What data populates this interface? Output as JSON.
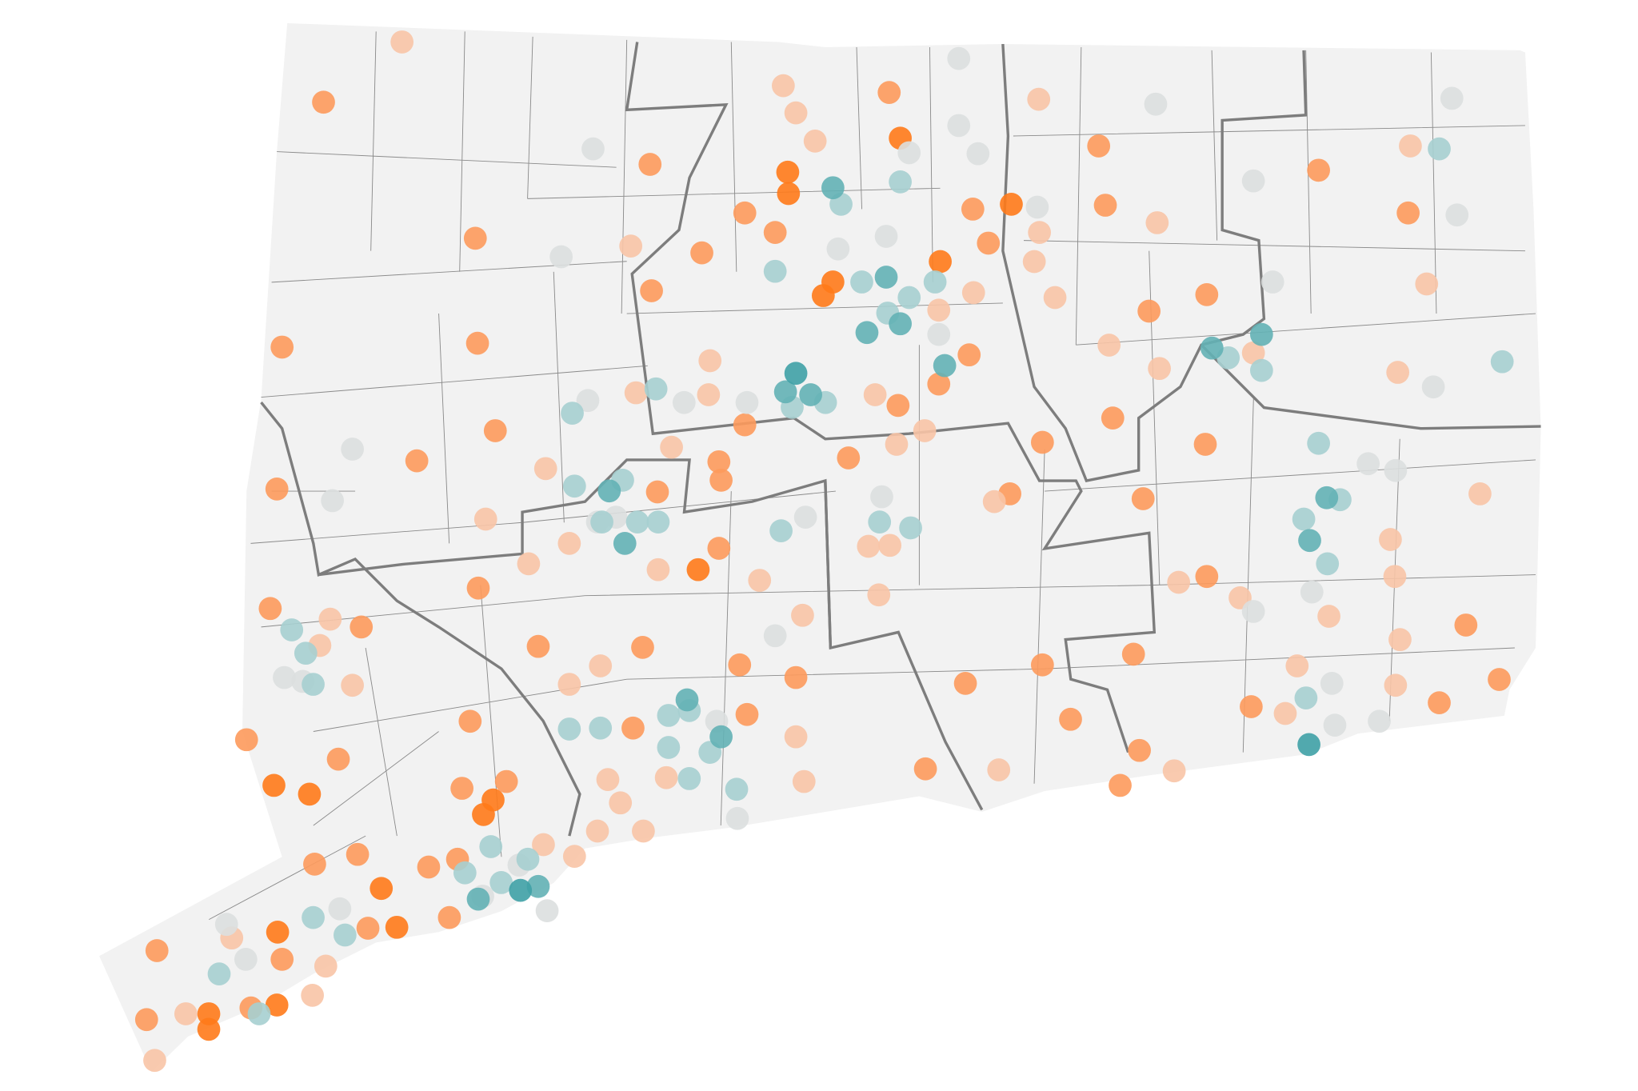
{
  "map": {
    "groups": [
      {
        "color": "#ff7a1a",
        "points": [
          [
            -73.589,
            41.034
          ],
          [
            -73.589,
            41.018
          ],
          [
            -73.497,
            41.043
          ],
          [
            -73.496,
            41.118
          ],
          [
            -73.501,
            41.269
          ],
          [
            -73.453,
            41.26
          ],
          [
            -73.356,
            41.163
          ],
          [
            -73.335,
            41.123
          ],
          [
            -73.218,
            41.239
          ],
          [
            -73.205,
            41.254
          ],
          [
            -72.759,
            41.773
          ],
          [
            -72.746,
            41.787
          ],
          [
            -72.807,
            41.9
          ],
          [
            -72.806,
            41.878
          ],
          [
            -72.505,
            41.867
          ],
          [
            -72.655,
            41.935
          ],
          [
            -72.601,
            41.808
          ],
          [
            -72.928,
            41.491
          ]
        ]
      },
      {
        "color": "#fd9a5c",
        "points": [
          [
            -73.434,
            41.972
          ],
          [
            -73.229,
            41.832
          ],
          [
            -73.226,
            41.724
          ],
          [
            -73.49,
            41.72
          ],
          [
            -73.497,
            41.574
          ],
          [
            -72.993,
            41.908
          ],
          [
            -72.865,
            41.858
          ],
          [
            -72.824,
            41.838
          ],
          [
            -72.923,
            41.817
          ],
          [
            -72.991,
            41.778
          ],
          [
            -72.67,
            41.982
          ],
          [
            -72.387,
            41.927
          ],
          [
            -72.378,
            41.866
          ],
          [
            -72.09,
            41.902
          ],
          [
            -71.969,
            41.858
          ],
          [
            -72.241,
            41.774
          ],
          [
            -72.319,
            41.757
          ],
          [
            -72.562,
            41.712
          ],
          [
            -72.603,
            41.682
          ],
          [
            -72.658,
            41.66
          ],
          [
            -72.725,
            41.606
          ],
          [
            -72.368,
            41.647
          ],
          [
            -72.463,
            41.622
          ],
          [
            -72.243,
            41.62
          ],
          [
            -72.327,
            41.564
          ],
          [
            -72.507,
            41.569
          ],
          [
            -72.241,
            41.484
          ],
          [
            -71.891,
            41.434
          ],
          [
            -71.927,
            41.354
          ],
          [
            -71.846,
            41.378
          ],
          [
            -72.34,
            41.404
          ],
          [
            -72.463,
            41.393
          ],
          [
            -72.425,
            41.337
          ],
          [
            -72.567,
            41.374
          ],
          [
            -72.621,
            41.286
          ],
          [
            -72.332,
            41.305
          ],
          [
            -72.181,
            41.35
          ],
          [
            -72.358,
            41.269
          ],
          [
            -72.796,
            41.38
          ],
          [
            -72.872,
            41.393
          ],
          [
            -72.862,
            41.342
          ],
          [
            -72.9,
            41.513
          ],
          [
            -72.983,
            41.571
          ],
          [
            -73.003,
            41.411
          ],
          [
            -73.144,
            41.412
          ],
          [
            -73.016,
            41.328
          ],
          [
            -73.225,
            41.472
          ],
          [
            -73.383,
            41.432
          ],
          [
            -73.506,
            41.451
          ],
          [
            -73.538,
            41.316
          ],
          [
            -73.414,
            41.296
          ],
          [
            -73.236,
            41.335
          ],
          [
            -73.187,
            41.273
          ],
          [
            -73.247,
            41.266
          ],
          [
            -73.446,
            41.188
          ],
          [
            -73.388,
            41.198
          ],
          [
            -73.292,
            41.185
          ],
          [
            -73.253,
            41.193
          ],
          [
            -73.264,
            41.133
          ],
          [
            -73.374,
            41.122
          ],
          [
            -73.659,
            41.099
          ],
          [
            -73.673,
            41.028
          ],
          [
            -73.532,
            41.04
          ],
          [
            -73.49,
            41.09
          ],
          [
            -73.202,
            41.634
          ],
          [
            -73.308,
            41.603
          ],
          [
            -72.9,
            41.602
          ],
          [
            -72.865,
            41.64
          ],
          [
            -72.897,
            41.583
          ],
          [
            -72.557,
            41.862
          ],
          [
            -72.536,
            41.827
          ]
        ]
      },
      {
        "color": "#f8c4a6",
        "points": [
          [
            -73.328,
            42.034
          ],
          [
            -72.813,
            41.989
          ],
          [
            -72.796,
            41.961
          ],
          [
            -72.77,
            41.932
          ],
          [
            -73.019,
            41.824
          ],
          [
            -72.468,
            41.975
          ],
          [
            -71.966,
            41.927
          ],
          [
            -72.308,
            41.848
          ],
          [
            -72.467,
            41.838
          ],
          [
            -72.474,
            41.808
          ],
          [
            -72.556,
            41.776
          ],
          [
            -72.446,
            41.771
          ],
          [
            -72.373,
            41.722
          ],
          [
            -72.305,
            41.698
          ],
          [
            -72.178,
            41.714
          ],
          [
            -71.944,
            41.785
          ],
          [
            -71.983,
            41.694
          ],
          [
            -71.872,
            41.569
          ],
          [
            -71.993,
            41.522
          ],
          [
            -71.987,
            41.484
          ],
          [
            -71.98,
            41.419
          ],
          [
            -71.986,
            41.372
          ],
          [
            -72.076,
            41.443
          ],
          [
            -72.119,
            41.392
          ],
          [
            -72.196,
            41.462
          ],
          [
            -72.279,
            41.478
          ],
          [
            -72.135,
            41.343
          ],
          [
            -72.285,
            41.284
          ],
          [
            -72.522,
            41.285
          ],
          [
            -72.684,
            41.465
          ],
          [
            -72.698,
            41.515
          ],
          [
            -72.669,
            41.516
          ],
          [
            -72.66,
            41.62
          ],
          [
            -72.528,
            41.561
          ],
          [
            -72.787,
            41.444
          ],
          [
            -72.845,
            41.48
          ],
          [
            -72.785,
            41.273
          ],
          [
            -72.796,
            41.319
          ],
          [
            -72.971,
            41.277
          ],
          [
            -73.05,
            41.275
          ],
          [
            -73.033,
            41.251
          ],
          [
            -73.064,
            41.222
          ],
          [
            -73.002,
            41.222
          ],
          [
            -73.095,
            41.196
          ],
          [
            -73.137,
            41.208
          ],
          [
            -73.102,
            41.373
          ],
          [
            -73.06,
            41.392
          ],
          [
            -72.982,
            41.491
          ],
          [
            -73.102,
            41.518
          ],
          [
            -73.157,
            41.497
          ],
          [
            -73.215,
            41.543
          ],
          [
            -73.134,
            41.595
          ],
          [
            -72.964,
            41.617
          ],
          [
            -72.912,
            41.706
          ],
          [
            -72.914,
            41.671
          ],
          [
            -73.012,
            41.673
          ],
          [
            -73.395,
            41.372
          ],
          [
            -73.425,
            41.44
          ],
          [
            -73.439,
            41.413
          ],
          [
            -73.662,
            40.986
          ],
          [
            -73.62,
            41.034
          ],
          [
            -73.558,
            41.112
          ],
          [
            -73.431,
            41.083
          ],
          [
            -73.449,
            41.053
          ],
          [
            -72.622,
            41.634
          ],
          [
            -72.603,
            41.758
          ],
          [
            -72.689,
            41.671
          ]
        ]
      },
      {
        "color": "#dcdfdf",
        "points": [
          [
            -72.576,
            42.017
          ],
          [
            -72.576,
            41.948
          ],
          [
            -72.55,
            41.919
          ],
          [
            -72.31,
            41.97
          ],
          [
            -71.91,
            41.976
          ],
          [
            -72.178,
            41.891
          ],
          [
            -71.903,
            41.856
          ],
          [
            -72.152,
            41.787
          ],
          [
            -71.935,
            41.679
          ],
          [
            -72.023,
            41.6
          ],
          [
            -71.986,
            41.593
          ],
          [
            -72.099,
            41.468
          ],
          [
            -72.178,
            41.448
          ],
          [
            -72.072,
            41.374
          ],
          [
            -72.068,
            41.331
          ],
          [
            -72.008,
            41.335
          ],
          [
            -72.47,
            41.864
          ],
          [
            -73.07,
            41.924
          ],
          [
            -73.113,
            41.813
          ],
          [
            -73.395,
            41.615
          ],
          [
            -73.422,
            41.562
          ],
          [
            -73.077,
            41.665
          ],
          [
            -72.947,
            41.663
          ],
          [
            -72.862,
            41.663
          ],
          [
            -72.739,
            41.821
          ],
          [
            -72.674,
            41.834
          ],
          [
            -72.643,
            41.92
          ],
          [
            -72.603,
            41.733
          ],
          [
            -72.783,
            41.545
          ],
          [
            -72.824,
            41.423
          ],
          [
            -72.875,
            41.235
          ],
          [
            -72.903,
            41.335
          ],
          [
            -73.132,
            41.14
          ],
          [
            -73.219,
            41.155
          ],
          [
            -73.17,
            41.187
          ],
          [
            -73.462,
            41.376
          ],
          [
            -73.487,
            41.38
          ],
          [
            -73.539,
            41.09
          ],
          [
            -73.565,
            41.126
          ],
          [
            -73.412,
            41.142
          ],
          [
            -73.039,
            41.545
          ],
          [
            -73.064,
            41.54
          ],
          [
            -72.68,
            41.566
          ]
        ]
      },
      {
        "color": "#a6cfd0",
        "points": [
          [
            -72.735,
            41.867
          ],
          [
            -72.655,
            41.89
          ],
          [
            -72.824,
            41.798
          ],
          [
            -72.707,
            41.787
          ],
          [
            -72.643,
            41.771
          ],
          [
            -72.672,
            41.755
          ],
          [
            -72.608,
            41.787
          ],
          [
            -71.927,
            41.924
          ],
          [
            -72.212,
            41.709
          ],
          [
            -72.167,
            41.696
          ],
          [
            -71.842,
            41.705
          ],
          [
            -72.09,
            41.621
          ],
          [
            -72.11,
            41.543
          ],
          [
            -72.078,
            41.497
          ],
          [
            -72.061,
            41.563
          ],
          [
            -72.801,
            41.658
          ],
          [
            -72.756,
            41.663
          ],
          [
            -72.985,
            41.677
          ],
          [
            -73.098,
            41.652
          ],
          [
            -73.058,
            41.54
          ],
          [
            -73.01,
            41.54
          ],
          [
            -72.982,
            41.54
          ],
          [
            -73.095,
            41.577
          ],
          [
            -73.03,
            41.583
          ],
          [
            -72.816,
            41.531
          ],
          [
            -72.641,
            41.534
          ],
          [
            -72.683,
            41.54
          ],
          [
            -73.477,
            41.429
          ],
          [
            -73.448,
            41.373
          ],
          [
            -73.458,
            41.405
          ],
          [
            -73.102,
            41.327
          ],
          [
            -73.06,
            41.328
          ],
          [
            -72.968,
            41.341
          ],
          [
            -72.94,
            41.346
          ],
          [
            -72.968,
            41.308
          ],
          [
            -72.912,
            41.303
          ],
          [
            -72.94,
            41.276
          ],
          [
            -72.876,
            41.265
          ],
          [
            -73.208,
            41.206
          ],
          [
            -73.158,
            41.193
          ],
          [
            -73.243,
            41.179
          ],
          [
            -73.194,
            41.169
          ],
          [
            -73.448,
            41.133
          ],
          [
            -73.405,
            41.115
          ],
          [
            -73.575,
            41.075
          ],
          [
            -73.521,
            41.034
          ],
          [
            -72.107,
            41.359
          ]
        ]
      },
      {
        "color": "#63b1b5",
        "points": [
          [
            -72.746,
            41.884
          ],
          [
            -72.674,
            41.792
          ],
          [
            -72.7,
            41.735
          ],
          [
            -72.655,
            41.744
          ],
          [
            -72.234,
            41.719
          ],
          [
            -72.167,
            41.733
          ],
          [
            -72.102,
            41.521
          ],
          [
            -72.079,
            41.565
          ],
          [
            -72.81,
            41.674
          ],
          [
            -72.776,
            41.671
          ],
          [
            -73.027,
            41.518
          ],
          [
            -73.048,
            41.572
          ],
          [
            -72.595,
            41.701
          ],
          [
            -72.897,
            41.319
          ],
          [
            -72.943,
            41.357
          ],
          [
            -73.144,
            41.165
          ],
          [
            -73.225,
            41.152
          ]
        ]
      },
      {
        "color": "#3fa1a6",
        "points": [
          [
            -72.796,
            41.693
          ],
          [
            -72.103,
            41.311
          ],
          [
            -73.168,
            41.161
          ]
        ]
      }
    ]
  }
}
